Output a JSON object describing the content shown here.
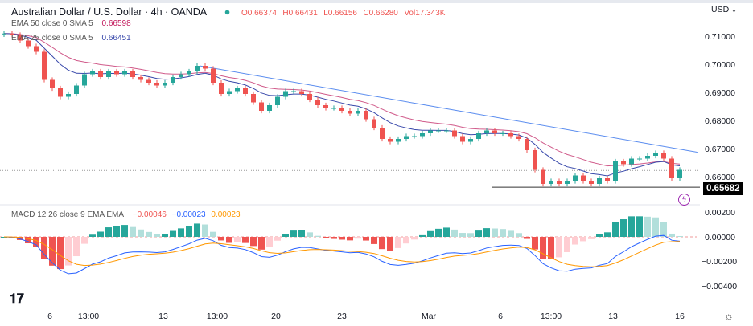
{
  "header": {
    "symbol_title": "Australian Dollar / U.S. Dollar · 4h · OANDA",
    "status_color": "#26a69a",
    "ohlc": {
      "open": "O0.66374",
      "high": "H0.66431",
      "low": "L0.66156",
      "close": "C0.66280",
      "volume": "Vol17.343K"
    }
  },
  "indicators": {
    "ema50": {
      "label": "EMA 50 close 0 SMA 5",
      "value": "0.66598",
      "color": "#c2185b"
    },
    "ema25": {
      "label": "EMA 25 close 0 SMA 5",
      "value": "0.66451",
      "color": "#3949ab"
    },
    "macd": {
      "label": "MACD 12 26 close 9 EMA EMA",
      "hist": "−0.00046",
      "macd": "−0.00023",
      "signal": "0.00023",
      "macd_color": "#2962ff",
      "signal_color": "#ff9800"
    }
  },
  "currency": "USD",
  "price_axis": [
    "0.71000",
    "0.70000",
    "0.69000",
    "0.68000",
    "0.67000",
    "0.66000"
  ],
  "macd_axis": [
    "0.00200",
    "0.00000",
    "−0.00200",
    "−0.00400"
  ],
  "last_price_label": "0.65682",
  "time_axis": [
    "6",
    "13:00",
    "13",
    "13:00",
    "20",
    "23",
    "Mar",
    "6",
    "13:00",
    "13",
    "16"
  ],
  "colors": {
    "up": "#26a69a",
    "down": "#ef5350",
    "trendline": "#5b8def"
  },
  "chart_data": {
    "type": "candlestick",
    "first_open": 0.7112,
    "closes": [
      0.7115,
      0.711,
      0.709,
      0.707,
      0.705,
      0.695,
      0.692,
      0.689,
      0.69,
      0.693,
      0.697,
      0.698,
      0.696,
      0.698,
      0.697,
      0.698,
      0.696,
      0.695,
      0.694,
      0.693,
      0.694,
      0.696,
      0.697,
      0.698,
      0.7,
      0.699,
      0.694,
      0.69,
      0.691,
      0.692,
      0.69,
      0.687,
      0.684,
      0.686,
      0.689,
      0.691,
      0.691,
      0.69,
      0.688,
      0.686,
      0.685,
      0.685,
      0.684,
      0.683,
      0.684,
      0.681,
      0.678,
      0.674,
      0.673,
      0.674,
      0.675,
      0.675,
      0.676,
      0.677,
      0.677,
      0.677,
      0.675,
      0.673,
      0.674,
      0.676,
      0.677,
      0.676,
      0.676,
      0.675,
      0.674,
      0.67,
      0.663,
      0.658,
      0.659,
      0.658,
      0.659,
      0.661,
      0.659,
      0.658,
      0.66,
      0.659,
      0.666,
      0.665,
      0.667,
      0.667,
      0.668,
      0.669,
      0.667,
      0.66,
      0.663
    ],
    "yrange": [
      0.653,
      0.715
    ],
    "macd_range": [
      -0.0056,
      0.0028
    ],
    "trendline": {
      "from": 0.7,
      "to": 0.6692
    },
    "support_level": 0.65682,
    "current_price": 0.6628
  }
}
